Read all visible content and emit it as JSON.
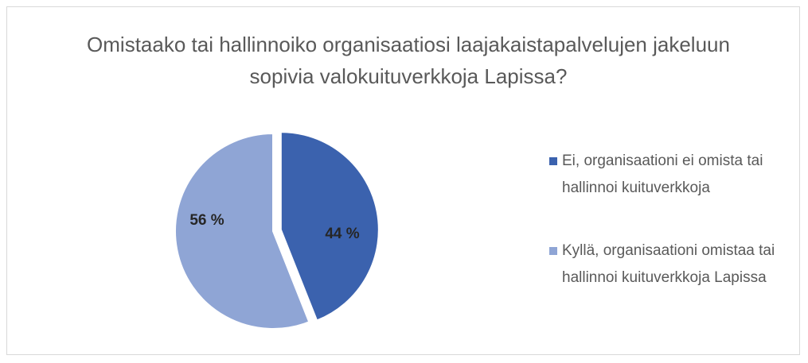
{
  "chart_data": {
    "type": "pie",
    "title": "Omistaako tai hallinnoiko organisaatiosi laajakaistapalvelujen jakeluun sopivia valokuituverkkoja Lapissa?",
    "categories": [
      "Ei, organisaationi ei omista tai hallinnoi kuituverkkoja",
      "Kyllä, organisaationi omistaa tai hallinnoi kuituverkkoja Lapissa"
    ],
    "values": [
      44,
      56
    ],
    "value_labels": [
      "44 %",
      "56 %"
    ],
    "colors": [
      "#3b62ae",
      "#8fa5d5"
    ],
    "legend": "right"
  }
}
